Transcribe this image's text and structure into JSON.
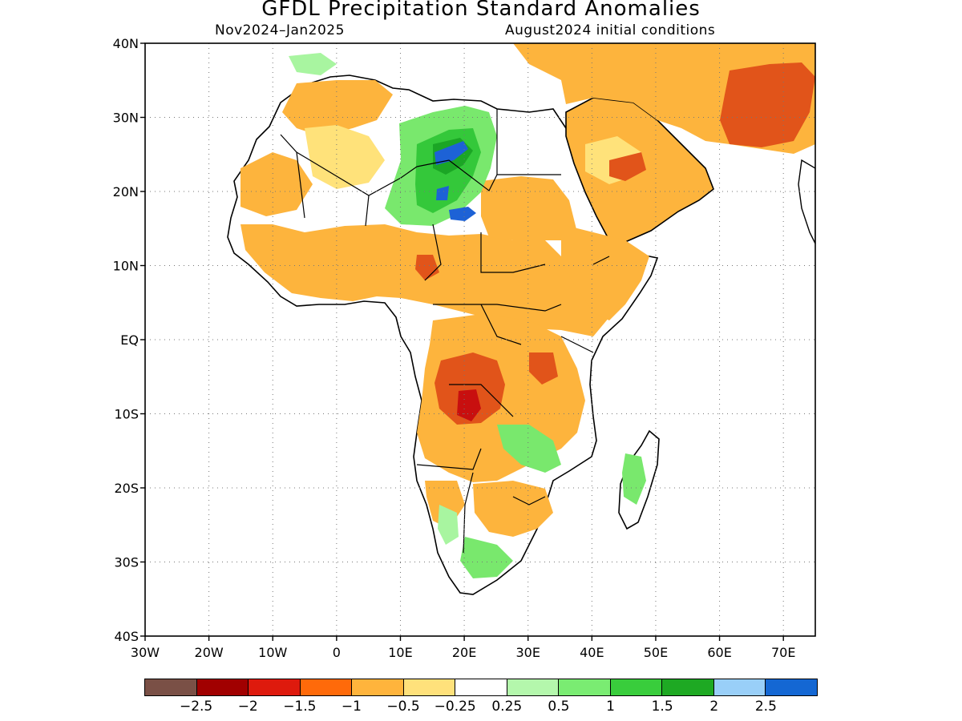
{
  "title": "GFDL Precipitation Standard Anomalies",
  "subtitle_left": "Nov2024–Jan2025",
  "subtitle_right": "August2024 initial conditions",
  "map": {
    "lon_range": [
      -30,
      75
    ],
    "lat_range": [
      -40,
      40
    ],
    "lat_ticks": [
      {
        "value": 40,
        "label": "40N"
      },
      {
        "value": 30,
        "label": "30N"
      },
      {
        "value": 20,
        "label": "20N"
      },
      {
        "value": 10,
        "label": "10N"
      },
      {
        "value": 0,
        "label": "EQ"
      },
      {
        "value": -10,
        "label": "10S"
      },
      {
        "value": -20,
        "label": "20S"
      },
      {
        "value": -30,
        "label": "30S"
      },
      {
        "value": -40,
        "label": "40S"
      }
    ],
    "lon_ticks": [
      {
        "value": -30,
        "label": "30W"
      },
      {
        "value": -20,
        "label": "20W"
      },
      {
        "value": -10,
        "label": "10W"
      },
      {
        "value": 0,
        "label": "0"
      },
      {
        "value": 10,
        "label": "10E"
      },
      {
        "value": 20,
        "label": "20E"
      },
      {
        "value": 30,
        "label": "30E"
      },
      {
        "value": 40,
        "label": "40E"
      },
      {
        "value": 50,
        "label": "50E"
      },
      {
        "value": 60,
        "label": "60E"
      },
      {
        "value": 70,
        "label": "70E"
      }
    ],
    "grid": "dotted",
    "colors": {
      "strong_dry": "#e1541a",
      "dry": "#fdb43d",
      "slight_dry": "#ffe27a",
      "slight_wet": "#a8f5a0",
      "wet": "#79e86d",
      "wetter": "#34c83a",
      "very_wet": "#1ba625",
      "extreme_wet": "#1d62d6",
      "deep_dry": "#c80f0f"
    }
  },
  "legend": {
    "colors": [
      "#7a5046",
      "#a10000",
      "#de1a0d",
      "#ff6a0a",
      "#ffb43c",
      "#ffe17b",
      "#ffffff",
      "#b4f7ac",
      "#7aec72",
      "#39cd3c",
      "#1ea923",
      "#99cff8",
      "#1467d3"
    ],
    "labels": [
      "−2.5",
      "−2",
      "−1.5",
      "−1",
      "−0.5",
      "−0.25",
      "0.25",
      "0.5",
      "1",
      "1.5",
      "2",
      "2.5"
    ]
  }
}
